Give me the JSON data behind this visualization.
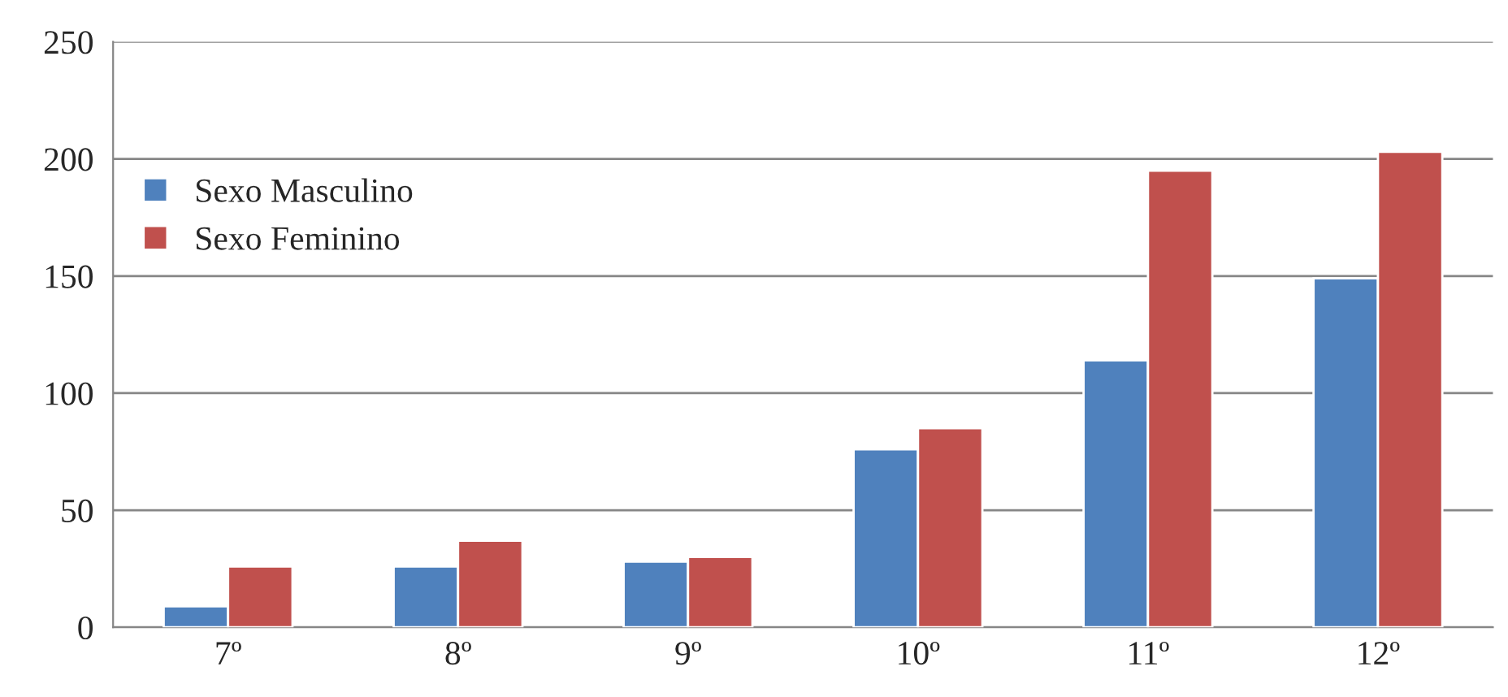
{
  "chart_data": {
    "type": "bar",
    "categories": [
      "7º",
      "8º",
      "9º",
      "10º",
      "11º",
      "12º"
    ],
    "series": [
      {
        "name": "Sexo Masculino",
        "color": "#4f81bd",
        "values": [
          9,
          26,
          28,
          76,
          114,
          149
        ]
      },
      {
        "name": "Sexo Feminino",
        "color": "#c0504d",
        "values": [
          26,
          37,
          30,
          85,
          195,
          203
        ]
      }
    ],
    "ylim": [
      0,
      250
    ],
    "yticks": [
      0,
      50,
      100,
      150,
      200,
      250
    ],
    "grid": "y",
    "legend": "center left"
  }
}
